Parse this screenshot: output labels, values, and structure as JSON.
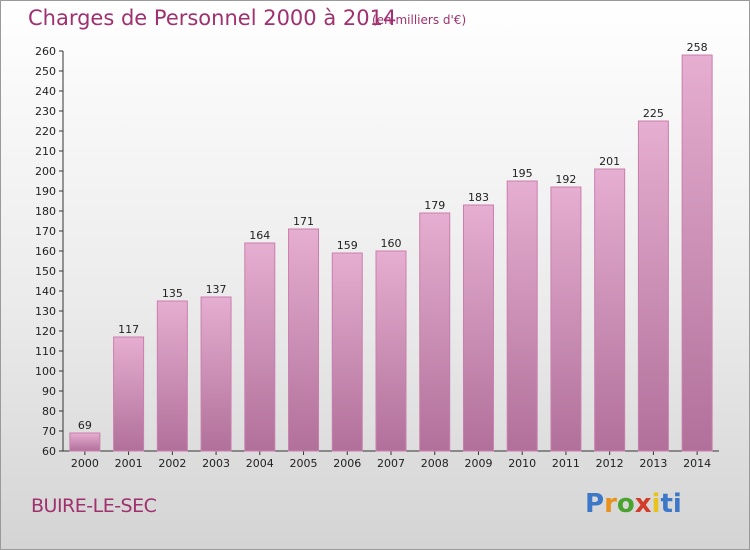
{
  "title": "Charges de Personnel 2000 à 2014",
  "unit_note": "(en milliers d'€)",
  "town": "BUIRE-LE-SEC",
  "logo": {
    "text": "Proxiti",
    "parts": [
      "P",
      "r",
      "o",
      "x",
      "i",
      "ti"
    ]
  },
  "colors": {
    "bar_top": "#e6aed0",
    "bar_bottom": "#b1709a",
    "bar_edge": "#c97fae",
    "accent": "#a0306e"
  },
  "chart_data": {
    "type": "bar",
    "categories": [
      "2000",
      "2001",
      "2002",
      "2003",
      "2004",
      "2005",
      "2006",
      "2007",
      "2008",
      "2009",
      "2010",
      "2011",
      "2012",
      "2013",
      "2014"
    ],
    "values": [
      69,
      117,
      135,
      137,
      164,
      171,
      159,
      160,
      179,
      183,
      195,
      192,
      201,
      225,
      258
    ],
    "ylim": [
      60,
      260
    ],
    "ytick_step": 10,
    "grid": false,
    "legend": "none"
  }
}
